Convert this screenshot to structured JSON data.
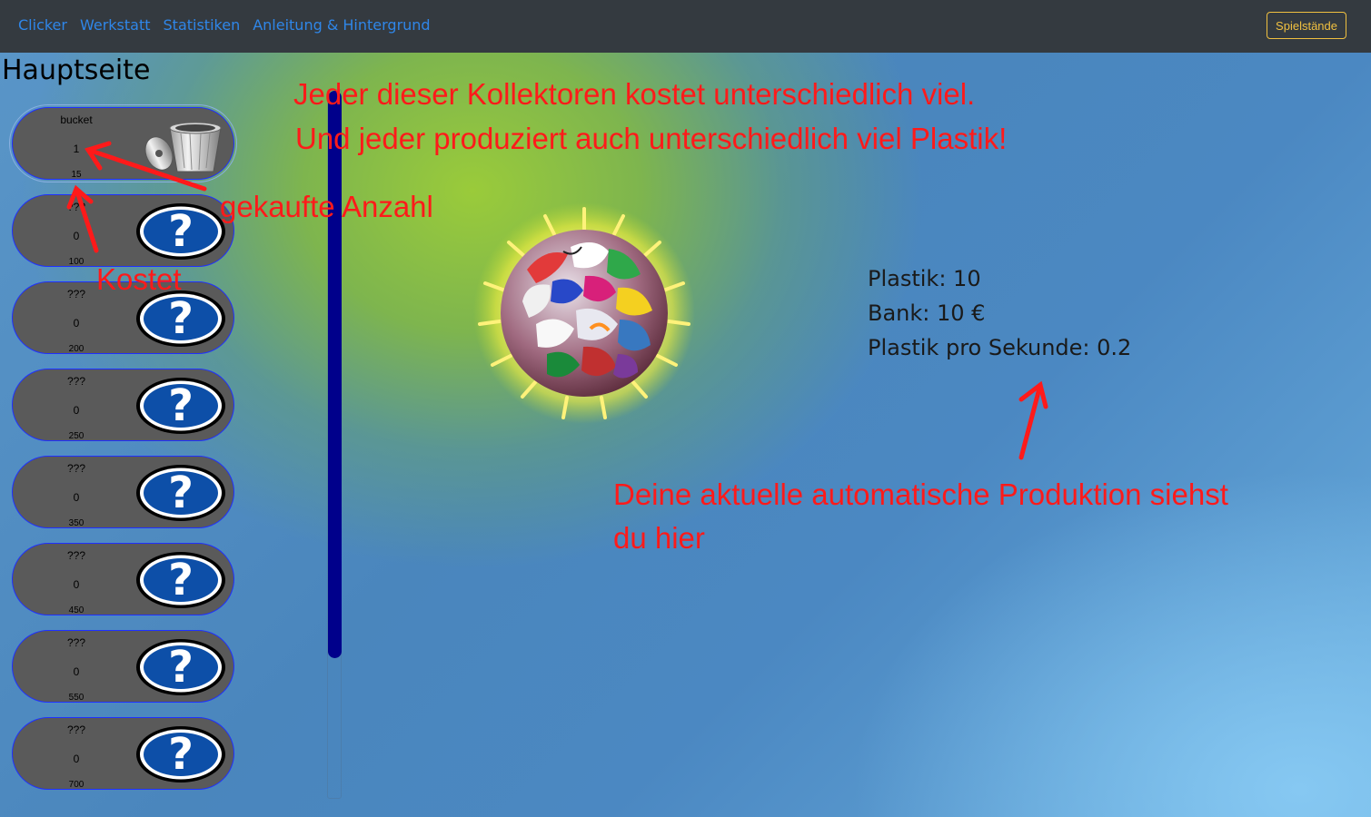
{
  "nav": {
    "links": [
      "Clicker",
      "Werkstatt",
      "Statistiken",
      "Anleitung & Hintergrund"
    ],
    "saves_label": "Spielstände"
  },
  "page": {
    "title": "Hauptseite"
  },
  "collectors": [
    {
      "name": "bucket",
      "count": "1",
      "cost": "15",
      "icon": "bucket-icon"
    },
    {
      "name": "???",
      "count": "0",
      "cost": "100",
      "icon": "question-mark-icon"
    },
    {
      "name": "???",
      "count": "0",
      "cost": "200",
      "icon": "question-mark-icon"
    },
    {
      "name": "???",
      "count": "0",
      "cost": "250",
      "icon": "question-mark-icon"
    },
    {
      "name": "???",
      "count": "0",
      "cost": "350",
      "icon": "question-mark-icon"
    },
    {
      "name": "???",
      "count": "0",
      "cost": "450",
      "icon": "question-mark-icon"
    },
    {
      "name": "???",
      "count": "0",
      "cost": "550",
      "icon": "question-mark-icon"
    },
    {
      "name": "???",
      "count": "0",
      "cost": "700",
      "icon": "question-mark-icon"
    }
  ],
  "stats": {
    "plastik": "Plastik: 10",
    "bank": "Bank: 10 €",
    "per_second": "Plastik pro Sekunde: 0.2"
  },
  "annotations": {
    "collectors_line1": "Jeder dieser Kollektoren kostet unterschiedlich viel.",
    "collectors_line2": "Und jeder produziert auch unterschiedlich viel Plastik!",
    "count": "gekaufte Anzahl",
    "cost": "Kostet",
    "production_line1": "Deine aktuelle automatische Produktion siehst",
    "production_line2": "du hier"
  },
  "colors": {
    "navbar": "#343a40",
    "nav_link": "#2f86e8",
    "saves_button": "#f0c040",
    "collector_bg": "#5a5a5a",
    "collector_border": "#1f30ff",
    "scrollbar_thumb": "#00008b",
    "annotation": "#ff1a1a"
  }
}
